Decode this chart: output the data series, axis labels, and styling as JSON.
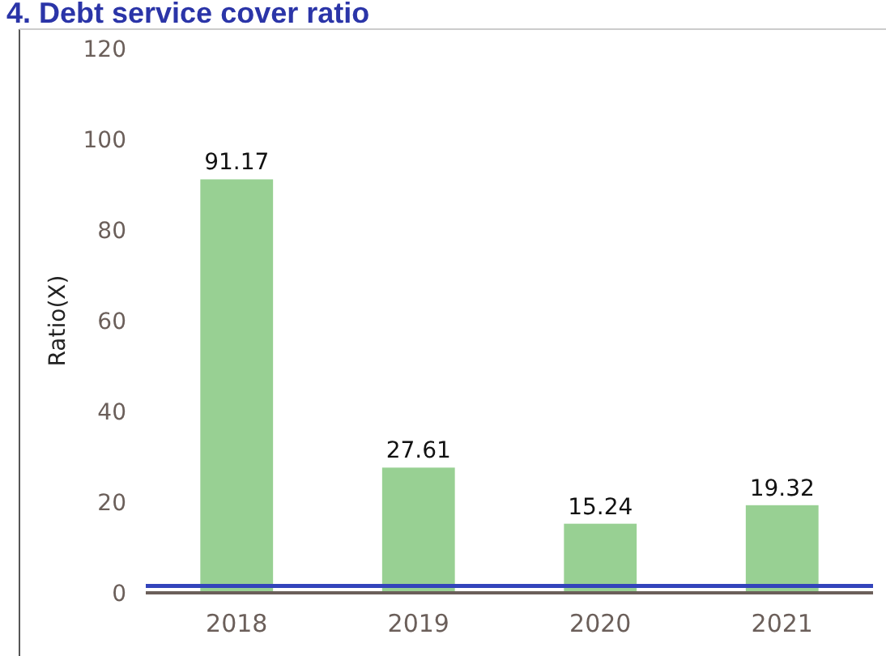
{
  "chart_data": {
    "type": "bar",
    "title": "4. Debt service cover ratio",
    "ylabel": "Ratio(X)",
    "categories": [
      "2018",
      "2019",
      "2020",
      "2021"
    ],
    "values": [
      91.17,
      27.61,
      15.24,
      19.32
    ],
    "color": "#98d093",
    "ylim": [
      0,
      120
    ],
    "yticks": [
      0,
      20,
      40,
      60,
      80,
      100,
      120
    ],
    "data_labels": true,
    "grid": false,
    "ref_lines": [
      {
        "axis": "y",
        "value": 1.5,
        "color": "#3344bb"
      }
    ]
  }
}
